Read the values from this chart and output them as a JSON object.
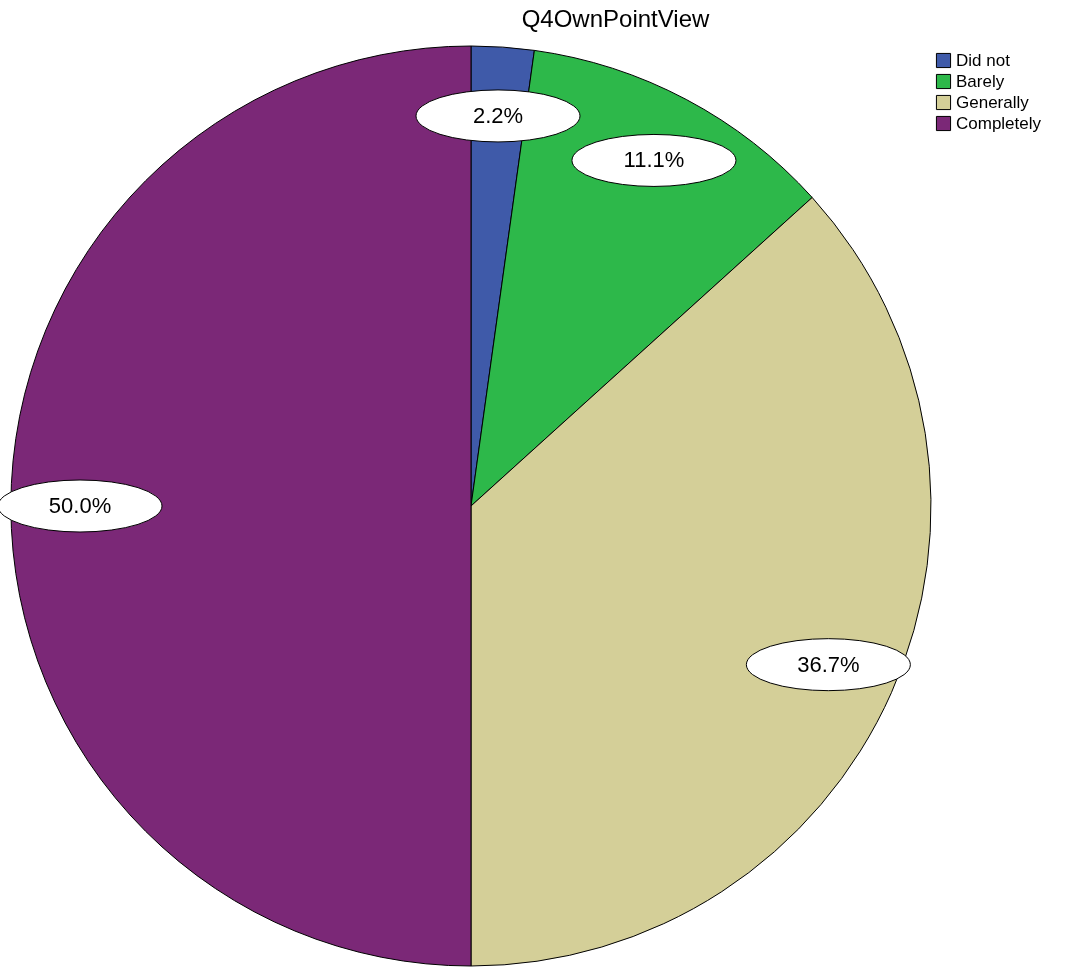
{
  "chart_data": {
    "type": "pie",
    "title": "Q4OwnPointView",
    "categories": [
      "Did not",
      "Barely",
      "Generally",
      "Completely"
    ],
    "values": [
      2.2,
      11.1,
      36.7,
      50.0
    ],
    "colors": [
      "#3f5aa9",
      "#2db84a",
      "#d4cf98",
      "#7b2877"
    ],
    "value_labels": [
      "2.2%",
      "11.1%",
      "36.7%",
      "50.0%"
    ],
    "legend": "top right"
  }
}
